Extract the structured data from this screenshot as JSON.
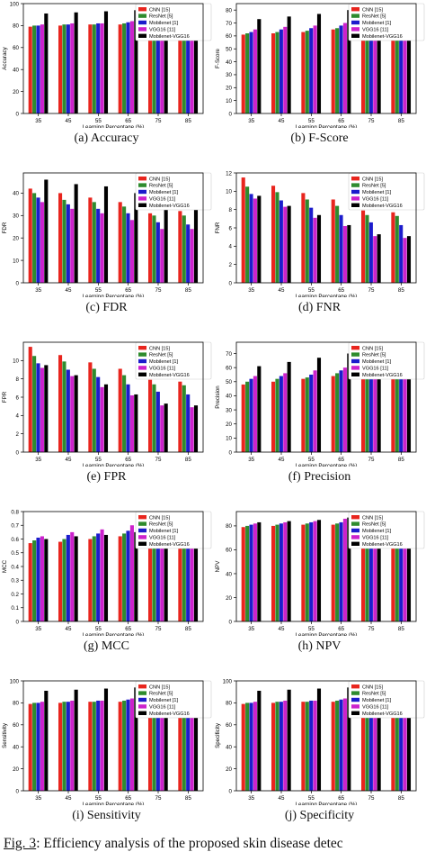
{
  "legend_labels": [
    "CNN [15]",
    "ResNet [5]",
    "Mobilenet [1]",
    "VGG16 [11]",
    "Mobilenet-VGG16"
  ],
  "series_colors": [
    "#e8251e",
    "#2e8b2e",
    "#1c1ccc",
    "#cc22cc",
    "#000000"
  ],
  "x_label": "Learning Percentage (%)",
  "x_tick_labels": [
    "35",
    "45",
    "55",
    "65",
    "75",
    "85"
  ],
  "figure_caption_prefix": "Fig. 3",
  "figure_caption_text": ": Efficiency analysis of the proposed skin disease detec",
  "chart_data": [
    {
      "type": "bar",
      "caption": "(a) Accuracy",
      "ylabel": "Accuracy",
      "ylim": [
        0,
        100
      ],
      "yticks": [
        0,
        20,
        40,
        60,
        80,
        100
      ],
      "x": [
        "35",
        "45",
        "55",
        "65",
        "75",
        "85"
      ],
      "series": [
        {
          "name": "CNN [15]",
          "values": [
            79,
            80,
            81,
            81,
            70,
            70
          ]
        },
        {
          "name": "ResNet [5]",
          "values": [
            80,
            81,
            81,
            82,
            71,
            71
          ]
        },
        {
          "name": "Mobilenet [1]",
          "values": [
            80,
            81,
            82,
            83,
            72,
            72
          ]
        },
        {
          "name": "VGG16 [11]",
          "values": [
            81,
            82,
            82,
            84,
            73,
            73
          ]
        },
        {
          "name": "Mobilenet-VGG16",
          "values": [
            91,
            92,
            93,
            94,
            95,
            96
          ]
        }
      ]
    },
    {
      "type": "bar",
      "caption": "(b) F-Score",
      "ylabel": "F-Score",
      "ylim": [
        0,
        85
      ],
      "yticks": [
        0,
        10,
        20,
        30,
        40,
        50,
        60,
        70,
        80
      ],
      "x": [
        "35",
        "45",
        "55",
        "65",
        "75",
        "85"
      ],
      "series": [
        {
          "name": "CNN [15]",
          "values": [
            61,
            62,
            63,
            65,
            60,
            61
          ]
        },
        {
          "name": "ResNet [5]",
          "values": [
            62,
            63,
            64,
            66,
            61,
            62
          ]
        },
        {
          "name": "Mobilenet [1]",
          "values": [
            63,
            65,
            66,
            68,
            62,
            63
          ]
        },
        {
          "name": "VGG16 [11]",
          "values": [
            65,
            67,
            68,
            70,
            63,
            64
          ]
        },
        {
          "name": "Mobilenet-VGG16",
          "values": [
            73,
            75,
            77,
            80,
            82,
            84
          ]
        }
      ]
    },
    {
      "type": "bar",
      "caption": "(c) FDR",
      "ylabel": "FDR",
      "ylim": [
        0,
        49
      ],
      "yticks": [
        0,
        10,
        20,
        30,
        40
      ],
      "x": [
        "35",
        "45",
        "55",
        "65",
        "75",
        "85"
      ],
      "series": [
        {
          "name": "CNN [15]",
          "values": [
            42,
            40,
            38,
            36,
            31,
            32
          ]
        },
        {
          "name": "ResNet [5]",
          "values": [
            40,
            37,
            36,
            34,
            30,
            30
          ]
        },
        {
          "name": "Mobilenet [1]",
          "values": [
            38,
            35,
            33,
            31,
            27,
            26
          ]
        },
        {
          "name": "VGG16 [11]",
          "values": [
            36,
            33,
            31,
            28,
            24,
            24
          ]
        },
        {
          "name": "Mobilenet-VGG16",
          "values": [
            46,
            44,
            43,
            40,
            36,
            38
          ]
        }
      ]
    },
    {
      "type": "bar",
      "caption": "(d) FNR",
      "ylabel": "FNR",
      "ylim": [
        0,
        12
      ],
      "yticks": [
        0,
        2,
        4,
        6,
        8,
        10,
        12
      ],
      "x": [
        "35",
        "45",
        "55",
        "65",
        "75",
        "85"
      ],
      "series": [
        {
          "name": "CNN [15]",
          "values": [
            11.5,
            10.6,
            9.8,
            9.1,
            7.9,
            7.7
          ]
        },
        {
          "name": "ResNet [5]",
          "values": [
            10.5,
            9.9,
            9.1,
            8.4,
            7.4,
            7.3
          ]
        },
        {
          "name": "Mobilenet [1]",
          "values": [
            9.7,
            9.0,
            8.2,
            7.4,
            6.6,
            6.3
          ]
        },
        {
          "name": "VGG16 [11]",
          "values": [
            9.2,
            8.3,
            7.1,
            6.2,
            5.1,
            4.9
          ]
        },
        {
          "name": "Mobilenet-VGG16",
          "values": [
            9.5,
            8.4,
            7.4,
            6.3,
            5.3,
            5.1
          ]
        }
      ]
    },
    {
      "type": "bar",
      "caption": "(e) FPR",
      "ylabel": "FPR",
      "ylim": [
        0,
        12
      ],
      "yticks": [
        0,
        2,
        4,
        6,
        8,
        10
      ],
      "x": [
        "35",
        "45",
        "55",
        "65",
        "75",
        "85"
      ],
      "series": [
        {
          "name": "CNN [15]",
          "values": [
            11.5,
            10.6,
            9.8,
            9.1,
            7.9,
            7.7
          ]
        },
        {
          "name": "ResNet [5]",
          "values": [
            10.5,
            9.9,
            9.1,
            8.4,
            7.4,
            7.3
          ]
        },
        {
          "name": "Mobilenet [1]",
          "values": [
            9.7,
            9.0,
            8.2,
            7.4,
            6.6,
            6.3
          ]
        },
        {
          "name": "VGG16 [11]",
          "values": [
            9.2,
            8.3,
            7.1,
            6.2,
            5.1,
            4.9
          ]
        },
        {
          "name": "Mobilenet-VGG16",
          "values": [
            9.5,
            8.4,
            7.4,
            6.3,
            5.3,
            5.1
          ]
        }
      ]
    },
    {
      "type": "bar",
      "caption": "(f) Precision",
      "ylabel": "Precision",
      "ylim": [
        0,
        78
      ],
      "yticks": [
        0,
        10,
        20,
        30,
        40,
        50,
        60,
        70
      ],
      "x": [
        "35",
        "45",
        "55",
        "65",
        "75",
        "85"
      ],
      "series": [
        {
          "name": "CNN [15]",
          "values": [
            48,
            50,
            52,
            54,
            58,
            60
          ]
        },
        {
          "name": "ResNet [5]",
          "values": [
            50,
            52,
            53,
            56,
            59,
            61
          ]
        },
        {
          "name": "Mobilenet [1]",
          "values": [
            52,
            54,
            55,
            58,
            60,
            62
          ]
        },
        {
          "name": "VGG16 [11]",
          "values": [
            54,
            56,
            58,
            60,
            62,
            64
          ]
        },
        {
          "name": "Mobilenet-VGG16",
          "values": [
            61,
            64,
            67,
            70,
            72,
            75
          ]
        }
      ]
    },
    {
      "type": "bar",
      "caption": "(g) MCC",
      "ylabel": "MCC",
      "ylim": [
        0,
        0.8
      ],
      "yticks": [
        0,
        0.1,
        0.2,
        0.3,
        0.4,
        0.5,
        0.6,
        0.7,
        0.8
      ],
      "x": [
        "35",
        "45",
        "55",
        "65",
        "75",
        "85"
      ],
      "series": [
        {
          "name": "CNN [15]",
          "values": [
            0.57,
            0.58,
            0.6,
            0.62,
            0.63,
            0.64
          ]
        },
        {
          "name": "ResNet [5]",
          "values": [
            0.59,
            0.6,
            0.62,
            0.64,
            0.65,
            0.66
          ]
        },
        {
          "name": "Mobilenet [1]",
          "values": [
            0.61,
            0.63,
            0.64,
            0.66,
            0.67,
            0.68
          ]
        },
        {
          "name": "VGG16 [11]",
          "values": [
            0.62,
            0.65,
            0.67,
            0.7,
            0.72,
            0.74
          ]
        },
        {
          "name": "Mobilenet-VGG16",
          "values": [
            0.6,
            0.62,
            0.63,
            0.65,
            0.66,
            0.67
          ]
        }
      ]
    },
    {
      "type": "bar",
      "caption": "(h) NPV",
      "ylabel": "NPV",
      "ylim": [
        0,
        92
      ],
      "yticks": [
        0,
        20,
        40,
        60,
        80
      ],
      "x": [
        "35",
        "45",
        "55",
        "65",
        "75",
        "85"
      ],
      "series": [
        {
          "name": "CNN [15]",
          "values": [
            79,
            80,
            81,
            81,
            70,
            70
          ]
        },
        {
          "name": "ResNet [5]",
          "values": [
            80,
            81,
            82,
            82,
            71,
            71
          ]
        },
        {
          "name": "Mobilenet [1]",
          "values": [
            81,
            82,
            83,
            83,
            72,
            72
          ]
        },
        {
          "name": "VGG16 [11]",
          "values": [
            82,
            83,
            84,
            86,
            85,
            86
          ]
        },
        {
          "name": "Mobilenet-VGG16",
          "values": [
            83,
            84,
            85,
            87,
            88,
            88
          ]
        }
      ]
    },
    {
      "type": "bar",
      "caption": "(i) Sensitivity",
      "ylabel": "Sensitivity",
      "ylim": [
        0,
        100
      ],
      "yticks": [
        0,
        20,
        40,
        60,
        80,
        100
      ],
      "x": [
        "35",
        "45",
        "55",
        "65",
        "75",
        "85"
      ],
      "series": [
        {
          "name": "CNN [15]",
          "values": [
            79,
            80,
            81,
            81,
            70,
            70
          ]
        },
        {
          "name": "ResNet [5]",
          "values": [
            80,
            81,
            81,
            82,
            71,
            71
          ]
        },
        {
          "name": "Mobilenet [1]",
          "values": [
            80,
            81,
            82,
            83,
            72,
            72
          ]
        },
        {
          "name": "VGG16 [11]",
          "values": [
            81,
            82,
            82,
            84,
            73,
            73
          ]
        },
        {
          "name": "Mobilenet-VGG16",
          "values": [
            91,
            92,
            93,
            94,
            95,
            96
          ]
        }
      ]
    },
    {
      "type": "bar",
      "caption": "(j) Specificity",
      "ylabel": "Specificity",
      "ylim": [
        0,
        100
      ],
      "yticks": [
        0,
        20,
        40,
        60,
        80,
        100
      ],
      "x": [
        "35",
        "45",
        "55",
        "65",
        "75",
        "85"
      ],
      "series": [
        {
          "name": "CNN [15]",
          "values": [
            79,
            80,
            81,
            81,
            70,
            70
          ]
        },
        {
          "name": "ResNet [5]",
          "values": [
            80,
            81,
            81,
            82,
            71,
            71
          ]
        },
        {
          "name": "Mobilenet [1]",
          "values": [
            80,
            81,
            82,
            83,
            72,
            72
          ]
        },
        {
          "name": "VGG16 [11]",
          "values": [
            81,
            82,
            82,
            84,
            73,
            73
          ]
        },
        {
          "name": "Mobilenet-VGG16",
          "values": [
            91,
            92,
            93,
            94,
            95,
            96
          ]
        }
      ]
    }
  ]
}
